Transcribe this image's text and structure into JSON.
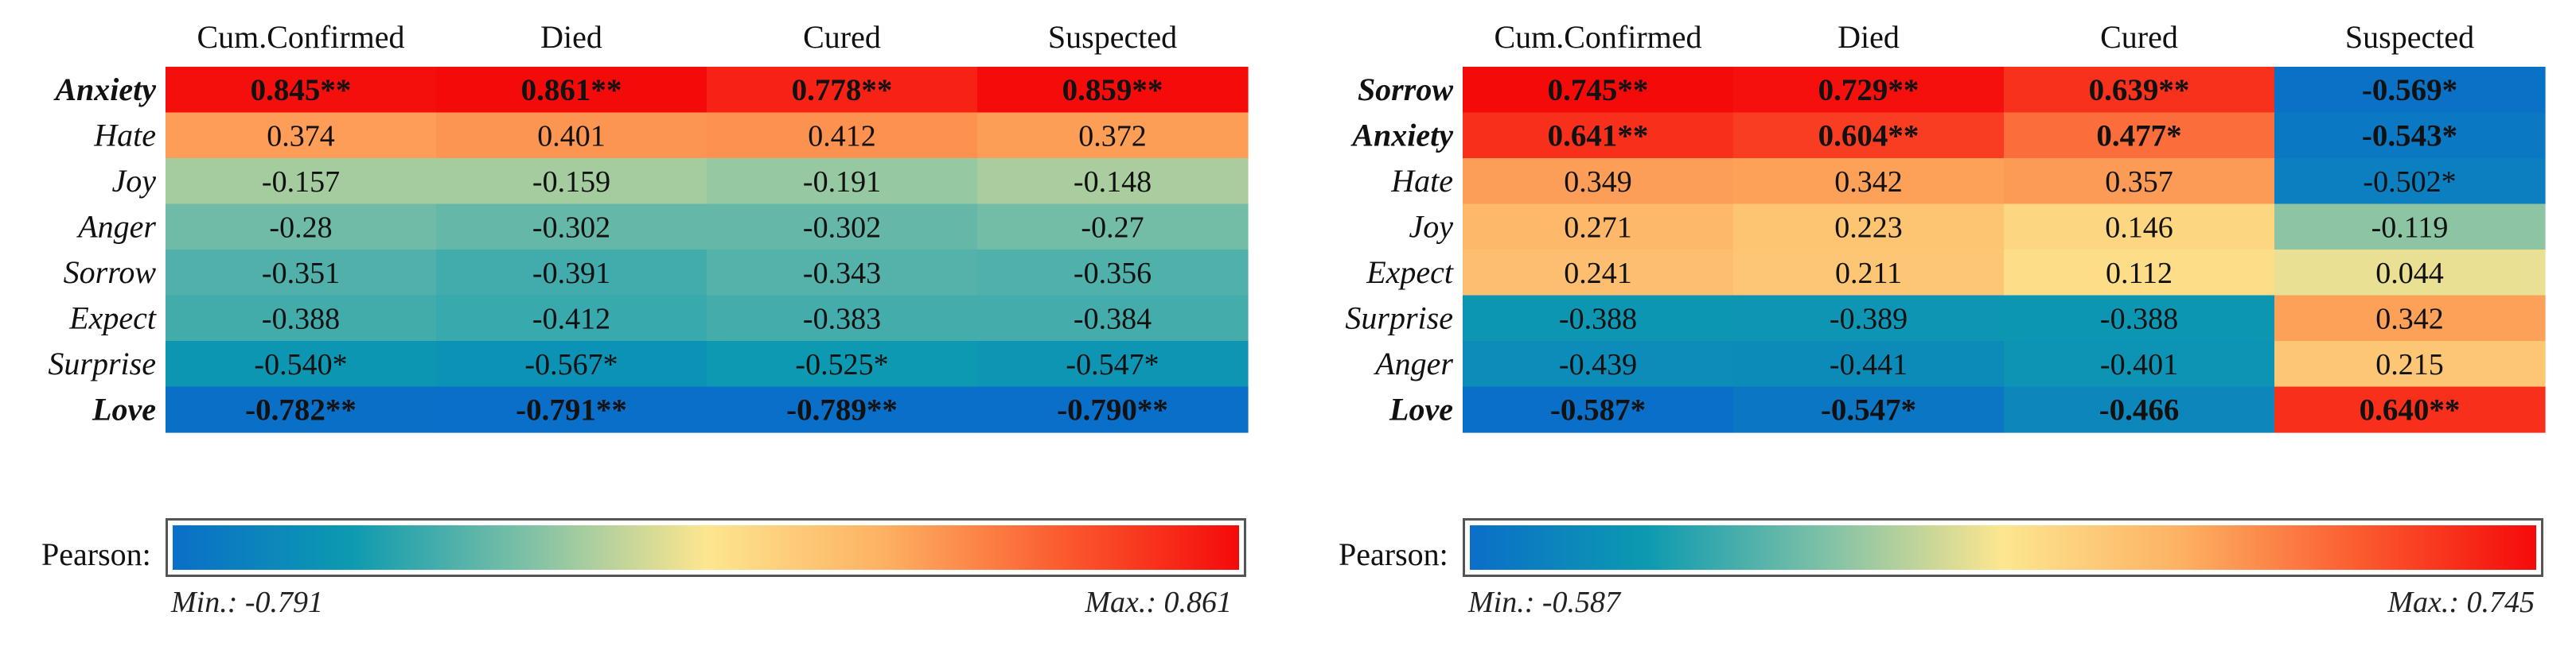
{
  "colors": {
    "scale_stops": [
      "#0a6fc8",
      "#0d9ab0",
      "#7fc1a6",
      "#fde68f",
      "#fdb163",
      "#fb5b2f",
      "#f50a0a"
    ]
  },
  "chart_data": [
    {
      "type": "heatmap",
      "columns": [
        "Cum.Confirmed",
        "Died",
        "Cured",
        "Suspected"
      ],
      "rows": [
        "Anxiety",
        "Hate",
        "Joy",
        "Anger",
        "Sorrow",
        "Expect",
        "Surprise",
        "Love"
      ],
      "bold_rows": [
        "Anxiety",
        "Love"
      ],
      "values": [
        [
          0.845,
          0.861,
          0.778,
          0.859
        ],
        [
          0.374,
          0.401,
          0.412,
          0.372
        ],
        [
          -0.157,
          -0.159,
          -0.191,
          -0.148
        ],
        [
          -0.28,
          -0.302,
          -0.302,
          -0.27
        ],
        [
          -0.351,
          -0.391,
          -0.343,
          -0.356
        ],
        [
          -0.388,
          -0.412,
          -0.383,
          -0.384
        ],
        [
          -0.54,
          -0.567,
          -0.525,
          -0.547
        ],
        [
          -0.782,
          -0.791,
          -0.789,
          -0.79
        ]
      ],
      "labels": [
        [
          "0.845**",
          "0.861**",
          "0.778**",
          "0.859**"
        ],
        [
          "0.374",
          "0.401",
          "0.412",
          "0.372"
        ],
        [
          "-0.157",
          "-0.159",
          "-0.191",
          "-0.148"
        ],
        [
          "-0.28",
          "-0.302",
          "-0.302",
          "-0.27"
        ],
        [
          "-0.351",
          "-0.391",
          "-0.343",
          "-0.356"
        ],
        [
          "-0.388",
          "-0.412",
          "-0.383",
          "-0.384"
        ],
        [
          "-0.540*",
          "-0.567*",
          "-0.525*",
          "-0.547*"
        ],
        [
          "-0.782**",
          "-0.791**",
          "-0.789**",
          "-0.790**"
        ]
      ],
      "legend": {
        "title": "Pearson:",
        "min_label": "Min.: -0.791",
        "max_label": "Max.: 0.861",
        "min": -0.791,
        "max": 0.861
      }
    },
    {
      "type": "heatmap",
      "columns": [
        "Cum.Confirmed",
        "Died",
        "Cured",
        "Suspected"
      ],
      "rows": [
        "Sorrow",
        "Anxiety",
        "Hate",
        "Joy",
        "Expect",
        "Surprise",
        "Anger",
        "Love"
      ],
      "bold_rows": [
        "Sorrow",
        "Anxiety",
        "Love"
      ],
      "values": [
        [
          0.745,
          0.729,
          0.639,
          -0.569
        ],
        [
          0.641,
          0.604,
          0.477,
          -0.543
        ],
        [
          0.349,
          0.342,
          0.357,
          -0.502
        ],
        [
          0.271,
          0.223,
          0.146,
          -0.119
        ],
        [
          0.241,
          0.211,
          0.112,
          0.044
        ],
        [
          -0.388,
          -0.389,
          -0.388,
          0.342
        ],
        [
          -0.439,
          -0.441,
          -0.401,
          0.215
        ],
        [
          -0.587,
          -0.547,
          -0.466,
          0.64
        ]
      ],
      "labels": [
        [
          "0.745**",
          "0.729**",
          "0.639**",
          "-0.569*"
        ],
        [
          "0.641**",
          "0.604**",
          "0.477*",
          "-0.543*"
        ],
        [
          "0.349",
          "0.342",
          "0.357",
          "-0.502*"
        ],
        [
          "0.271",
          "0.223",
          "0.146",
          "-0.119"
        ],
        [
          "0.241",
          "0.211",
          "0.112",
          "0.044"
        ],
        [
          "-0.388",
          "-0.389",
          "-0.388",
          "0.342"
        ],
        [
          "-0.439",
          "-0.441",
          "-0.401",
          "0.215"
        ],
        [
          "-0.587*",
          "-0.547*",
          "-0.466",
          "0.640**"
        ]
      ],
      "legend": {
        "title": "Pearson:",
        "min_label": "Min.: -0.587",
        "max_label": "Max.: 0.745",
        "min": -0.587,
        "max": 0.745
      }
    }
  ]
}
